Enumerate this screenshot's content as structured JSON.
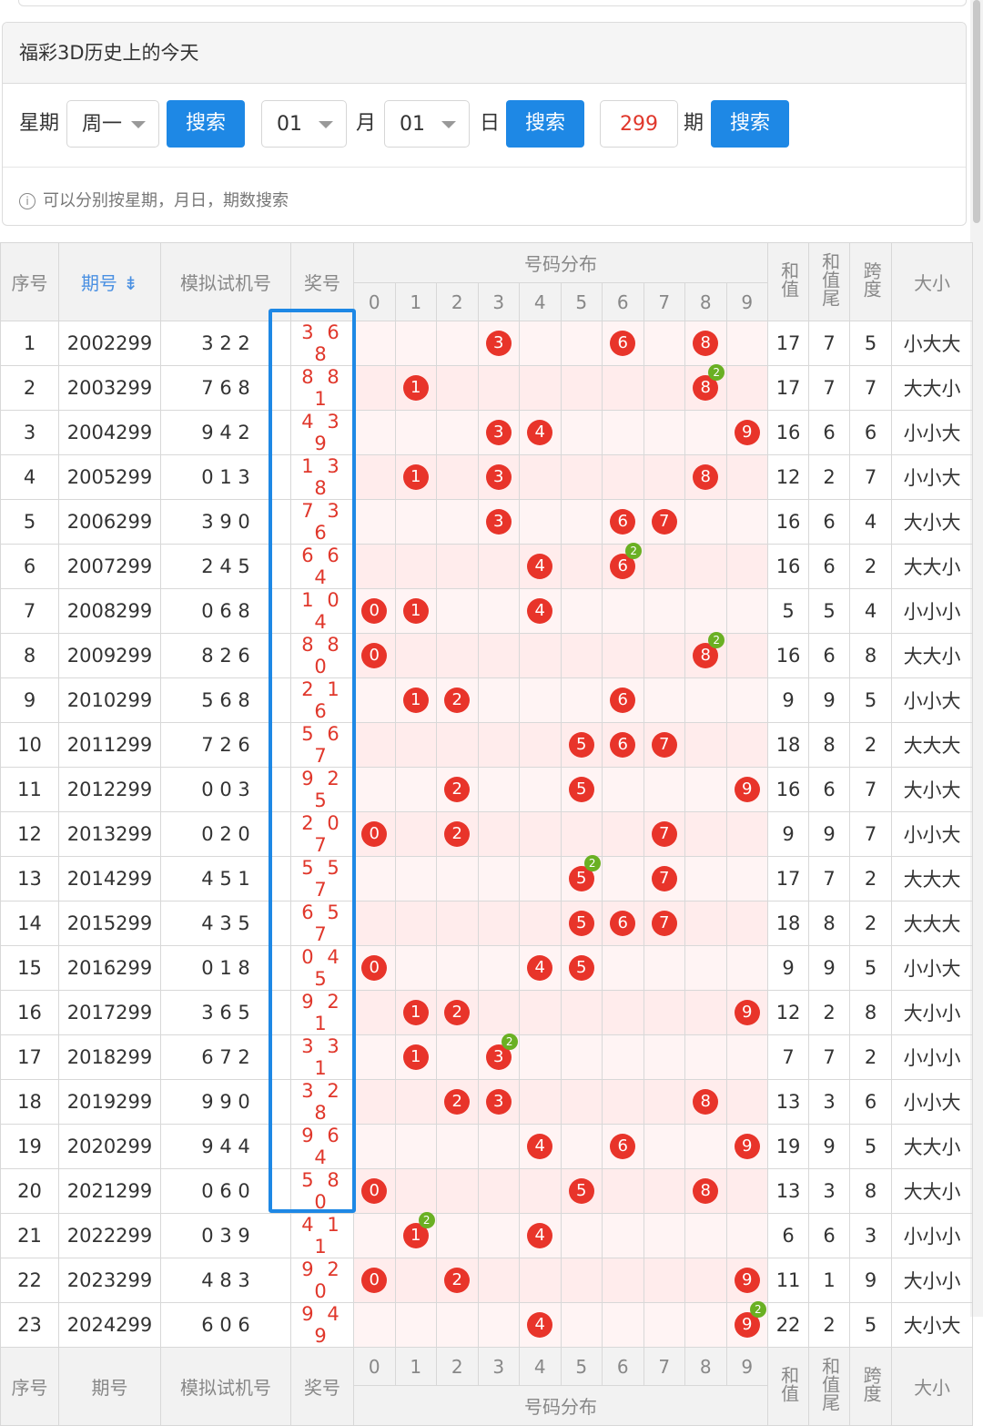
{
  "panel": {
    "title": "福彩3D历史上的今天",
    "week_label": "星期",
    "week_value": "周一",
    "month_value": "01",
    "month_label": "月",
    "day_value": "01",
    "day_label": "日",
    "issue_value": "299",
    "issue_label": "期",
    "search_label": "搜索",
    "hint": "可以分别按星期，月日，期数搜索"
  },
  "table": {
    "headers": {
      "seq": "序号",
      "issue": "期号",
      "sim": "模拟试机号",
      "prize": "奖号",
      "dist": "号码分布",
      "sum": "和值",
      "sum_tail": "和值尾",
      "span": "跨度",
      "size": "大小"
    },
    "digits": [
      "0",
      "1",
      "2",
      "3",
      "4",
      "5",
      "6",
      "7",
      "8",
      "9"
    ],
    "rows": [
      {
        "seq": "1",
        "issue": "2002299",
        "sim": "3 2 2",
        "prize": "3 6 8",
        "sum": "17",
        "tail": "7",
        "span": "5",
        "size": "小大大"
      },
      {
        "seq": "2",
        "issue": "2003299",
        "sim": "7 6 8",
        "prize": "8 8 1",
        "sum": "17",
        "tail": "7",
        "span": "7",
        "size": "大大小"
      },
      {
        "seq": "3",
        "issue": "2004299",
        "sim": "9 4 2",
        "prize": "4 3 9",
        "sum": "16",
        "tail": "6",
        "span": "6",
        "size": "小小大"
      },
      {
        "seq": "4",
        "issue": "2005299",
        "sim": "0 1 3",
        "prize": "1 3 8",
        "sum": "12",
        "tail": "2",
        "span": "7",
        "size": "小小大"
      },
      {
        "seq": "5",
        "issue": "2006299",
        "sim": "3 9 0",
        "prize": "7 3 6",
        "sum": "16",
        "tail": "6",
        "span": "4",
        "size": "大小大"
      },
      {
        "seq": "6",
        "issue": "2007299",
        "sim": "2 4 5",
        "prize": "6 6 4",
        "sum": "16",
        "tail": "6",
        "span": "2",
        "size": "大大小"
      },
      {
        "seq": "7",
        "issue": "2008299",
        "sim": "0 6 8",
        "prize": "1 0 4",
        "sum": "5",
        "tail": "5",
        "span": "4",
        "size": "小小小"
      },
      {
        "seq": "8",
        "issue": "2009299",
        "sim": "8 2 6",
        "prize": "8 8 0",
        "sum": "16",
        "tail": "6",
        "span": "8",
        "size": "大大小"
      },
      {
        "seq": "9",
        "issue": "2010299",
        "sim": "5 6 8",
        "prize": "2 1 6",
        "sum": "9",
        "tail": "9",
        "span": "5",
        "size": "小小大"
      },
      {
        "seq": "10",
        "issue": "2011299",
        "sim": "7 2 6",
        "prize": "5 6 7",
        "sum": "18",
        "tail": "8",
        "span": "2",
        "size": "大大大"
      },
      {
        "seq": "11",
        "issue": "2012299",
        "sim": "0 0 3",
        "prize": "9 2 5",
        "sum": "16",
        "tail": "6",
        "span": "7",
        "size": "大小大"
      },
      {
        "seq": "12",
        "issue": "2013299",
        "sim": "0 2 0",
        "prize": "2 0 7",
        "sum": "9",
        "tail": "9",
        "span": "7",
        "size": "小小大"
      },
      {
        "seq": "13",
        "issue": "2014299",
        "sim": "4 5 1",
        "prize": "5 5 7",
        "sum": "17",
        "tail": "7",
        "span": "2",
        "size": "大大大"
      },
      {
        "seq": "14",
        "issue": "2015299",
        "sim": "4 3 5",
        "prize": "6 5 7",
        "sum": "18",
        "tail": "8",
        "span": "2",
        "size": "大大大"
      },
      {
        "seq": "15",
        "issue": "2016299",
        "sim": "0 1 8",
        "prize": "0 4 5",
        "sum": "9",
        "tail": "9",
        "span": "5",
        "size": "小小大"
      },
      {
        "seq": "16",
        "issue": "2017299",
        "sim": "3 6 5",
        "prize": "9 2 1",
        "sum": "12",
        "tail": "2",
        "span": "8",
        "size": "大小小"
      },
      {
        "seq": "17",
        "issue": "2018299",
        "sim": "6 7 2",
        "prize": "3 3 1",
        "sum": "7",
        "tail": "7",
        "span": "2",
        "size": "小小小"
      },
      {
        "seq": "18",
        "issue": "2019299",
        "sim": "9 9 0",
        "prize": "3 2 8",
        "sum": "13",
        "tail": "3",
        "span": "6",
        "size": "小小大"
      },
      {
        "seq": "19",
        "issue": "2020299",
        "sim": "9 4 4",
        "prize": "9 6 4",
        "sum": "19",
        "tail": "9",
        "span": "5",
        "size": "大大小"
      },
      {
        "seq": "20",
        "issue": "2021299",
        "sim": "0 6 0",
        "prize": "5 8 0",
        "sum": "13",
        "tail": "3",
        "span": "8",
        "size": "大大小"
      },
      {
        "seq": "21",
        "issue": "2022299",
        "sim": "0 3 9",
        "prize": "4 1 1",
        "sum": "6",
        "tail": "6",
        "span": "3",
        "size": "小小小"
      },
      {
        "seq": "22",
        "issue": "2023299",
        "sim": "4 8 3",
        "prize": "9 2 0",
        "sum": "11",
        "tail": "1",
        "span": "9",
        "size": "大小小"
      },
      {
        "seq": "23",
        "issue": "2024299",
        "sim": "6 0 6",
        "prize": "9 4 9",
        "sum": "22",
        "tail": "2",
        "span": "5",
        "size": "大小大"
      }
    ]
  }
}
